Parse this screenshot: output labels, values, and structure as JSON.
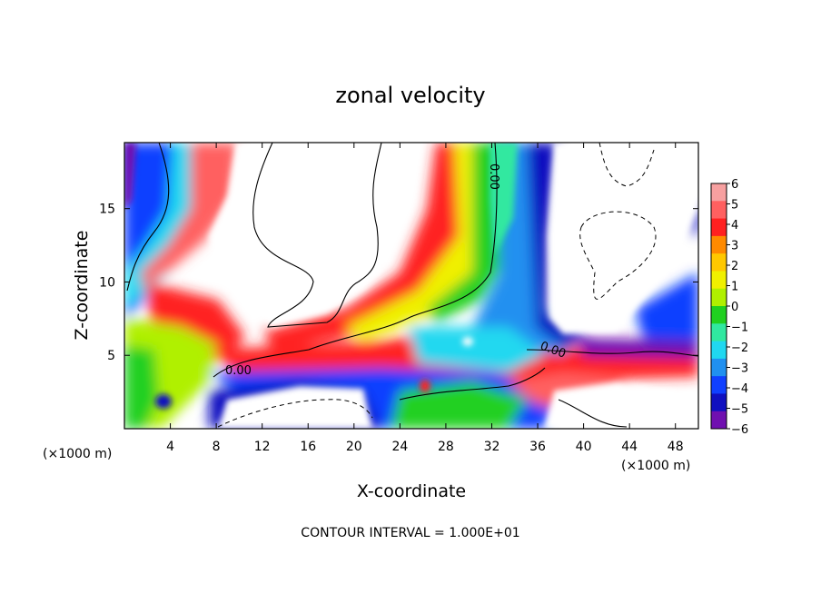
{
  "chart_data": {
    "type": "heatmap",
    "title": "zonal velocity",
    "xlabel": "X-coordinate",
    "ylabel": "Z-coordinate",
    "x_unit_left": "(×1000 m)",
    "x_unit_right": "(×1000 m)",
    "xlim": [
      0,
      50
    ],
    "ylim": [
      0,
      19.5
    ],
    "x_ticks": [
      4,
      8,
      12,
      16,
      20,
      24,
      28,
      32,
      36,
      40,
      44,
      48
    ],
    "y_ticks": [
      5,
      10,
      15
    ],
    "colorbar": {
      "levels": [
        6,
        5,
        4,
        3,
        2,
        1,
        0,
        -1,
        -2,
        -3,
        -4,
        -5,
        -6
      ],
      "labels": [
        "6",
        "5",
        "4",
        "3",
        "2",
        "1",
        "0",
        "−1",
        "−2",
        "−3",
        "−4",
        "−5",
        "−6"
      ],
      "colors": [
        "#f7a0a0",
        "#ff6060",
        "#ff2020",
        "#ff8a00",
        "#ffc800",
        "#f0f000",
        "#b0f000",
        "#20d020",
        "#30e8a0",
        "#20d8f0",
        "#2090f0",
        "#1040ff",
        "#1010c0",
        "#7010b0"
      ]
    },
    "contour_labels": [
      "0.00",
      "0.00",
      "0.00"
    ],
    "footer": "CONTOUR INTERVAL = 1.000E+01"
  }
}
